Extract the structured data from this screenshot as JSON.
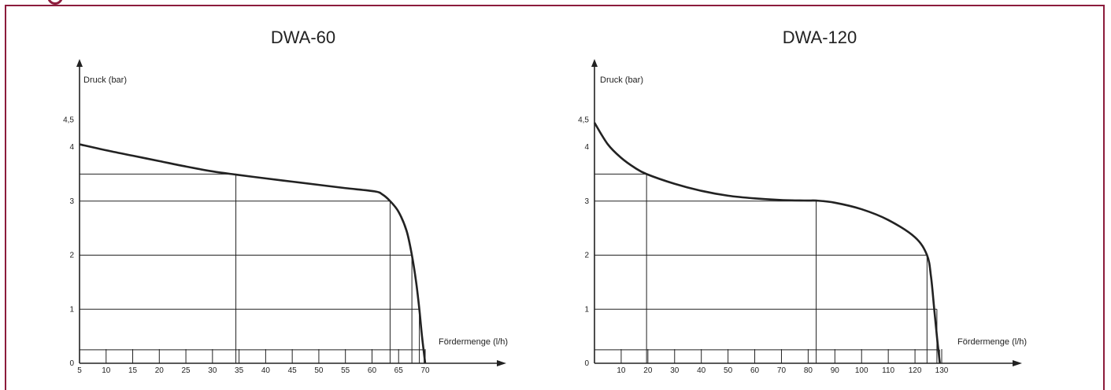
{
  "colors": {
    "frame": "#8c1c3c",
    "line": "#222222"
  },
  "chart_data": [
    {
      "type": "line",
      "title": "DWA-60",
      "ylabel": "Druck (bar)",
      "xlabel": "Fördermenge (l/h)",
      "xlim": [
        5,
        70
      ],
      "ylim": [
        0,
        4.5
      ],
      "x_ticks": [
        5,
        10,
        15,
        20,
        25,
        30,
        35,
        40,
        45,
        50,
        55,
        60,
        65,
        70
      ],
      "x_tick_labels": [
        "5",
        "10",
        "15",
        "20",
        "25",
        "30",
        "35",
        "40",
        "45",
        "50",
        "55",
        "60",
        "65",
        "70"
      ],
      "y_ticks": [
        0,
        1,
        2,
        3,
        4,
        4.5
      ],
      "y_tick_labels": [
        "0",
        "1",
        "2",
        "3",
        "4",
        "4,5"
      ],
      "series": [
        {
          "x": [
            5,
            10,
            15,
            20,
            25,
            30,
            34.4,
            40,
            45,
            50,
            55,
            60.5,
            62,
            63.4,
            65,
            66.5,
            67.5,
            68.3,
            68.9,
            69.4,
            70
          ],
          "y": [
            4.05,
            3.94,
            3.84,
            3.74,
            3.64,
            3.55,
            3.49,
            3.42,
            3.36,
            3.3,
            3.24,
            3.18,
            3.12,
            3.0,
            2.8,
            2.45,
            2.0,
            1.5,
            1.0,
            0.5,
            0
          ]
        }
      ],
      "reference_points": [
        {
          "x": 34.4,
          "y": 3.5
        },
        {
          "x": 63.4,
          "y": 3.0
        },
        {
          "x": 67.5,
          "y": 2.0
        },
        {
          "x": 68.9,
          "y": 1.0
        },
        {
          "x": 69.8,
          "y": 0.25
        }
      ],
      "grid": false
    },
    {
      "type": "line",
      "title": "DWA-120",
      "ylabel": "Druck (bar)",
      "xlabel": "Fördermenge (l/h)",
      "xlim": [
        0,
        130
      ],
      "ylim": [
        0,
        4.5
      ],
      "x_ticks": [
        10,
        20,
        30,
        40,
        50,
        60,
        70,
        80,
        90,
        100,
        110,
        120,
        130
      ],
      "x_tick_labels": [
        "10",
        "20",
        "30",
        "40",
        "50",
        "60",
        "70",
        "80",
        "90",
        "100",
        "110",
        "120",
        "130"
      ],
      "y_ticks": [
        0,
        1,
        2,
        3,
        4,
        4.5
      ],
      "y_tick_labels": [
        "0",
        "1",
        "2",
        "3",
        "4",
        "4,5"
      ],
      "series": [
        {
          "x": [
            0,
            5,
            10,
            15,
            19.5,
            30,
            40,
            50,
            60,
            70,
            80,
            83,
            90,
            100,
            110,
            120,
            124.5,
            126,
            127.2,
            128.3,
            129.3
          ],
          "y": [
            4.45,
            4.05,
            3.8,
            3.62,
            3.5,
            3.32,
            3.19,
            3.1,
            3.05,
            3.02,
            3.01,
            3.01,
            2.97,
            2.85,
            2.65,
            2.33,
            2.0,
            1.6,
            1.0,
            0.45,
            0
          ]
        }
      ],
      "reference_points": [
        {
          "x": 19.5,
          "y": 3.5
        },
        {
          "x": 83,
          "y": 3.0
        },
        {
          "x": 124.5,
          "y": 2.0
        },
        {
          "x": 128.2,
          "y": 1.0
        },
        {
          "x": 129.2,
          "y": 0.25
        }
      ],
      "grid": false
    }
  ]
}
